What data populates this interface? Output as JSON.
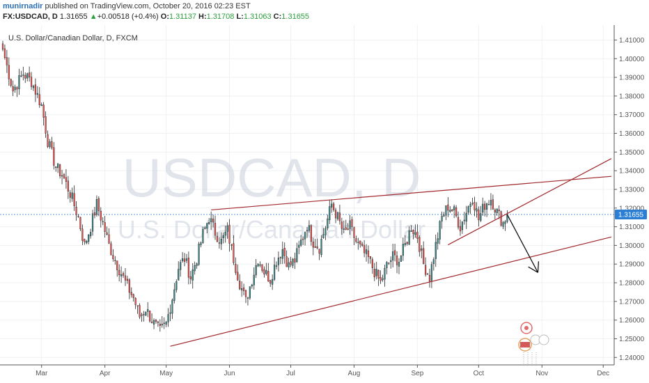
{
  "header": {
    "author": "munirnadir",
    "published_text": "published on TradingView.com, October 20, 2016 02:23 EST",
    "symbol": "FX:USDCAD, D",
    "price": "1.31655",
    "arrow": "▲",
    "change": "+0.00518 (+0.4%)",
    "o_label": "O:",
    "o_value": "1.31137",
    "h_label": "H:",
    "h_value": "1.31708",
    "l_label": "L:",
    "l_value": "1.31063",
    "c_label": "C:",
    "c_value": "1.31655"
  },
  "colors": {
    "up": "#3d8a8a",
    "down": "#ef5350",
    "wick": "#222222",
    "trendline": "#a1282c",
    "arrow": "#111111",
    "price_tag": "#2a7fd4"
  },
  "chart_data": {
    "type": "candlestick",
    "title": "U.S. Dollar/Canadian Dollar, D, FXCM",
    "watermark": "USDCAD, D",
    "watermark_sub": "U.S. Dollar/Canadian Dollar",
    "ylim": [
      1.236,
      1.418
    ],
    "y_ticks": [
      "1.41000",
      "1.40000",
      "1.39000",
      "1.38000",
      "1.37000",
      "1.36000",
      "1.35000",
      "1.34000",
      "1.33000",
      "1.32000",
      "1.31000",
      "1.30000",
      "1.29000",
      "1.28000",
      "1.27000",
      "1.26000",
      "1.25000",
      "1.24000"
    ],
    "x_labels": [
      {
        "label": "Mar",
        "day": 19
      },
      {
        "label": "Apr",
        "day": 50
      },
      {
        "label": "May",
        "day": 80
      },
      {
        "label": "Jun",
        "day": 111
      },
      {
        "label": "Jul",
        "day": 141
      },
      {
        "label": "Aug",
        "day": 172
      },
      {
        "label": "Sep",
        "day": 203
      },
      {
        "label": "Oct",
        "day": 233
      },
      {
        "label": "Nov",
        "day": 264
      },
      {
        "label": "Dec",
        "day": 294
      }
    ],
    "x_range_days": [
      0,
      298
    ],
    "last_price": "1.31655",
    "last_price_value": 1.31655,
    "anchors": [
      [
        0,
        1.405
      ],
      [
        5,
        1.383
      ],
      [
        10,
        1.392
      ],
      [
        14,
        1.388
      ],
      [
        19,
        1.375
      ],
      [
        22,
        1.356
      ],
      [
        26,
        1.342
      ],
      [
        29,
        1.338
      ],
      [
        33,
        1.328
      ],
      [
        37,
        1.315
      ],
      [
        40,
        1.3
      ],
      [
        43,
        1.31
      ],
      [
        46,
        1.322
      ],
      [
        49,
        1.312
      ],
      [
        52,
        1.3
      ],
      [
        55,
        1.292
      ],
      [
        58,
        1.285
      ],
      [
        61,
        1.278
      ],
      [
        64,
        1.272
      ],
      [
        67,
        1.262
      ],
      [
        70,
        1.266
      ],
      [
        74,
        1.258
      ],
      [
        77,
        1.254
      ],
      [
        80,
        1.258
      ],
      [
        83,
        1.272
      ],
      [
        86,
        1.288
      ],
      [
        89,
        1.293
      ],
      [
        92,
        1.283
      ],
      [
        95,
        1.293
      ],
      [
        98,
        1.306
      ],
      [
        101,
        1.315
      ],
      [
        104,
        1.307
      ],
      [
        107,
        1.302
      ],
      [
        110,
        1.308
      ],
      [
        113,
        1.293
      ],
      [
        116,
        1.28
      ],
      [
        119,
        1.27
      ],
      [
        122,
        1.282
      ],
      [
        125,
        1.293
      ],
      [
        128,
        1.286
      ],
      [
        131,
        1.282
      ],
      [
        134,
        1.292
      ],
      [
        137,
        1.298
      ],
      [
        140,
        1.289
      ],
      [
        143,
        1.292
      ],
      [
        146,
        1.302
      ],
      [
        149,
        1.311
      ],
      [
        152,
        1.302
      ],
      [
        155,
        1.299
      ],
      [
        158,
        1.31
      ],
      [
        161,
        1.322
      ],
      [
        164,
        1.315
      ],
      [
        167,
        1.306
      ],
      [
        170,
        1.31
      ],
      [
        173,
        1.302
      ],
      [
        176,
        1.297
      ],
      [
        179,
        1.293
      ],
      [
        182,
        1.286
      ],
      [
        185,
        1.28
      ],
      [
        188,
        1.289
      ],
      [
        191,
        1.294
      ],
      [
        194,
        1.292
      ],
      [
        197,
        1.3
      ],
      [
        200,
        1.31
      ],
      [
        203,
        1.305
      ],
      [
        206,
        1.29
      ],
      [
        209,
        1.283
      ],
      [
        212,
        1.3
      ],
      [
        215,
        1.315
      ],
      [
        218,
        1.321
      ],
      [
        221,
        1.318
      ],
      [
        224,
        1.31
      ],
      [
        227,
        1.318
      ],
      [
        230,
        1.326
      ],
      [
        233,
        1.314
      ],
      [
        236,
        1.322
      ],
      [
        239,
        1.325
      ],
      [
        242,
        1.318
      ],
      [
        245,
        1.312
      ],
      [
        247,
        1.31655
      ]
    ],
    "trendlines": [
      {
        "name": "upper",
        "from": [
          102,
          1.319
        ],
        "to": [
          298,
          1.337
        ]
      },
      {
        "name": "lower",
        "from": [
          82,
          1.246
        ],
        "to": [
          298,
          1.3045
        ]
      },
      {
        "name": "wedge",
        "from": [
          218,
          1.3003
        ],
        "to": [
          298,
          1.3465
        ]
      }
    ],
    "arrow_path": [
      [
        247,
        1.3165
      ],
      [
        262,
        1.2855
      ]
    ]
  }
}
